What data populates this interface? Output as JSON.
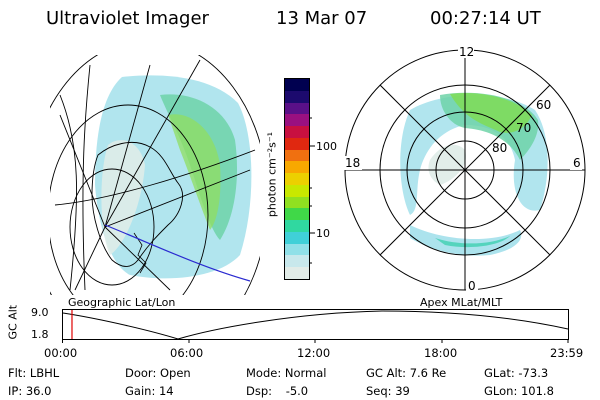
{
  "header": {
    "instrument": "Ultraviolet Imager",
    "date": "13 Mar 07",
    "time": "00:27:14 UT"
  },
  "left_map": {
    "caption": "Geographic Lat/Lon"
  },
  "right_map": {
    "caption": "Apex MLat/MLT",
    "mlt_labels": {
      "top": "12",
      "right": "6",
      "bottom": "0",
      "left": "18"
    },
    "lat_labels": [
      "60",
      "70",
      "80"
    ]
  },
  "colorbar": {
    "ticks": [
      "100",
      "10"
    ],
    "unit_label": "photon cm⁻²s⁻¹",
    "colors": [
      "#000050",
      "#1c0a6e",
      "#5a1088",
      "#9a1080",
      "#c81040",
      "#e02810",
      "#f07010",
      "#f8a800",
      "#ecd000",
      "#c8e800",
      "#90e020",
      "#40d848",
      "#30d8a0",
      "#40d0d8",
      "#90e0e8",
      "#c8e8ec",
      "#e2ece8"
    ]
  },
  "timeline": {
    "ylabel": "GC Alt",
    "yticks": [
      "9.0",
      "1.8"
    ],
    "xticks": [
      "00:00",
      "06:00",
      "12:00",
      "18:00",
      "23:59"
    ],
    "current_time_hours": 0.45
  },
  "status": {
    "row1": [
      {
        "label": "Flt:",
        "value": "LBHL"
      },
      {
        "label": "Door:",
        "value": "Open"
      },
      {
        "label": "Mode:",
        "value": "Normal"
      },
      {
        "label": "GC Alt:",
        "value": "7.6 Re"
      },
      {
        "label": "GLat:",
        "value": "-73.3"
      }
    ],
    "row2": [
      {
        "label": "IP:",
        "value": "36.0"
      },
      {
        "label": "Gain:",
        "value": "14"
      },
      {
        "label": "Dsp:",
        "value": "-5.0"
      },
      {
        "label": "Seq:",
        "value": "39"
      },
      {
        "label": "GLon:",
        "value": "101.8"
      }
    ]
  }
}
